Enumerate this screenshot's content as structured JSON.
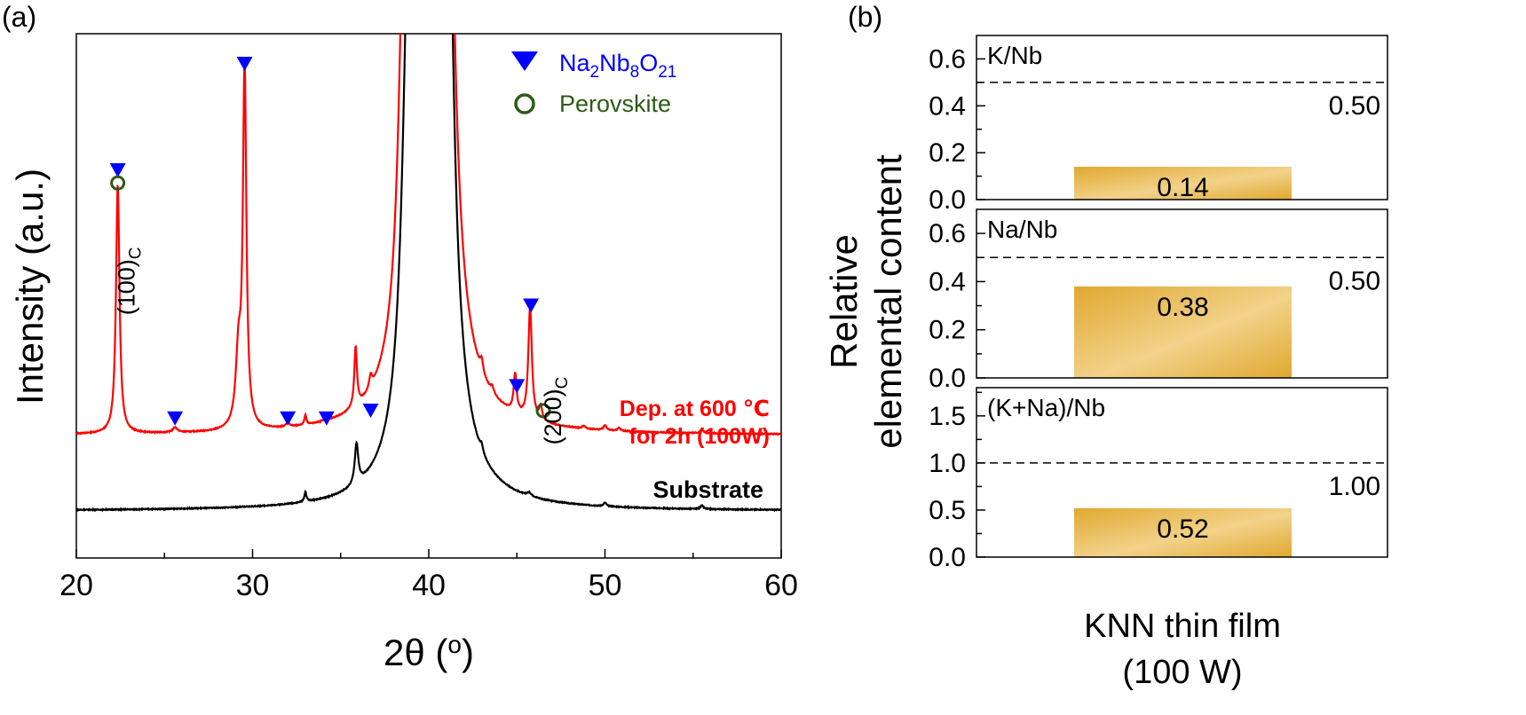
{
  "chart_data": [
    {
      "panel": "(a)",
      "type": "line",
      "xlabel_main": "2θ (",
      "xlabel_sup": "o",
      "xlabel_end": ")",
      "ylabel": "Intensity (a.u.)",
      "xlim": [
        20,
        60
      ],
      "xticks": [
        "20",
        "30",
        "40",
        "50",
        "60"
      ],
      "legend": {
        "entries": [
          {
            "marker": "filled-down-triangle",
            "color": "#0000ff",
            "label_parts": [
              "Na",
              "2",
              "Nb",
              "8",
              "O",
              "21"
            ]
          },
          {
            "marker": "open-circle",
            "color": "#2d5a16",
            "label": "Perovskite"
          }
        ],
        "placement": "top-right"
      },
      "series": [
        {
          "name": "Dep. at 600 ℃ for 2h (100W)",
          "label_line1": "Dep. at 600 ℃",
          "label_line2": "for 2h (100W)",
          "color": "#ff0000",
          "baseline": 1.0,
          "peaks": [
            {
              "x": 22.35,
              "height": 3.55,
              "width": 0.12
            },
            {
              "x": 25.6,
              "height": 0.07,
              "width": 0.15
            },
            {
              "x": 29.2,
              "height": 1.0,
              "width": 0.18
            },
            {
              "x": 29.55,
              "height": 5.1,
              "width": 0.12
            },
            {
              "x": 32.0,
              "height": 0.06,
              "width": 0.12
            },
            {
              "x": 33.0,
              "height": 0.14,
              "width": 0.07
            },
            {
              "x": 34.2,
              "height": 0.06,
              "width": 0.12
            },
            {
              "x": 35.85,
              "height": 0.85,
              "width": 0.09
            },
            {
              "x": 36.7,
              "height": 0.18,
              "width": 0.1
            },
            {
              "x": 38.6,
              "height": 4.2,
              "width": 0.35
            },
            {
              "x": 39.3,
              "height": 22.0,
              "width": 0.25
            },
            {
              "x": 40.45,
              "height": 40.0,
              "width": 0.35
            },
            {
              "x": 41.2,
              "height": 2.0,
              "width": 0.35
            },
            {
              "x": 43.0,
              "height": 0.18,
              "width": 0.1
            },
            {
              "x": 43.6,
              "height": 0.08,
              "width": 0.1
            },
            {
              "x": 44.9,
              "height": 0.55,
              "width": 0.1
            },
            {
              "x": 45.75,
              "height": 1.6,
              "width": 0.12
            },
            {
              "x": 46.35,
              "height": 0.2,
              "width": 0.1
            },
            {
              "x": 48.8,
              "height": 0.04,
              "width": 0.1
            },
            {
              "x": 50.0,
              "height": 0.07,
              "width": 0.1
            },
            {
              "x": 50.8,
              "height": 0.04,
              "width": 0.1
            },
            {
              "x": 55.5,
              "height": 0.06,
              "width": 0.1
            }
          ]
        },
        {
          "name": "Substrate",
          "color": "#000000",
          "baseline": 0.0,
          "peaks": [
            {
              "x": 33.0,
              "height": 0.14,
              "width": 0.07
            },
            {
              "x": 35.9,
              "height": 0.58,
              "width": 0.12
            },
            {
              "x": 38.7,
              "height": 1.6,
              "width": 0.4
            },
            {
              "x": 39.25,
              "height": 25.0,
              "width": 0.25
            },
            {
              "x": 40.45,
              "height": 38.0,
              "width": 0.35
            },
            {
              "x": 41.2,
              "height": 2.0,
              "width": 0.3
            },
            {
              "x": 43.0,
              "height": 0.1,
              "width": 0.1
            },
            {
              "x": 45.7,
              "height": 0.05,
              "width": 0.15
            },
            {
              "x": 50.0,
              "height": 0.05,
              "width": 0.1
            },
            {
              "x": 55.5,
              "height": 0.05,
              "width": 0.1
            }
          ]
        }
      ],
      "markers": [
        {
          "type": "triangle",
          "x": 22.35,
          "y": 4.78
        },
        {
          "type": "circle",
          "x": 22.35,
          "y": 4.6
        },
        {
          "type": "triangle",
          "x": 25.6,
          "y": 1.24
        },
        {
          "type": "triangle",
          "x": 29.55,
          "y": 6.3
        },
        {
          "type": "triangle",
          "x": 32.0,
          "y": 1.24
        },
        {
          "type": "triangle",
          "x": 34.2,
          "y": 1.24
        },
        {
          "type": "triangle",
          "x": 36.7,
          "y": 1.35
        },
        {
          "type": "triangle",
          "x": 45.0,
          "y": 1.7
        },
        {
          "type": "triangle",
          "x": 45.8,
          "y": 2.85
        },
        {
          "type": "circle",
          "x": 46.5,
          "y": 1.35
        }
      ],
      "annotations": [
        {
          "text": "(100)",
          "sub": "C",
          "x": 23.3,
          "y": 3.2
        },
        {
          "text": "(200)",
          "sub": "C",
          "x": 47.5,
          "y": 1.35
        }
      ]
    },
    {
      "panel": "(b)",
      "type": "bar",
      "ylabel_line1": "Relative",
      "ylabel_line2": "elemental content",
      "xlabel_line1": "KNN thin film",
      "xlabel_line2": "(100 W)",
      "bar_color_light": "#f2d28a",
      "bar_color_dark": "#e0a830",
      "subplots": [
        {
          "label": "K/Nb",
          "value": 0.14,
          "value_label": "0.14",
          "reference": 0.5,
          "reference_label": "0.50",
          "ylim": [
            0,
            0.7
          ],
          "yticks": [
            {
              "v": 0.0,
              "t": "0.0"
            },
            {
              "v": 0.2,
              "t": "0.2"
            },
            {
              "v": 0.4,
              "t": "0.4"
            },
            {
              "v": 0.6,
              "t": "0.6"
            }
          ]
        },
        {
          "label": "Na/Nb",
          "value": 0.38,
          "value_label": "0.38",
          "reference": 0.5,
          "reference_label": "0.50",
          "ylim": [
            0,
            0.7
          ],
          "yticks": [
            {
              "v": 0.0,
              "t": "0.0"
            },
            {
              "v": 0.2,
              "t": "0.2"
            },
            {
              "v": 0.4,
              "t": "0.4"
            },
            {
              "v": 0.6,
              "t": "0.6"
            }
          ]
        },
        {
          "label": "(K+Na)/Nb",
          "value": 0.52,
          "value_label": "0.52",
          "reference": 1.0,
          "reference_label": "1.00",
          "ylim": [
            0,
            1.8
          ],
          "yticks": [
            {
              "v": 0.0,
              "t": "0.0"
            },
            {
              "v": 0.5,
              "t": "0.5"
            },
            {
              "v": 1.0,
              "t": "1.0"
            },
            {
              "v": 1.5,
              "t": "1.5"
            }
          ]
        }
      ]
    }
  ]
}
